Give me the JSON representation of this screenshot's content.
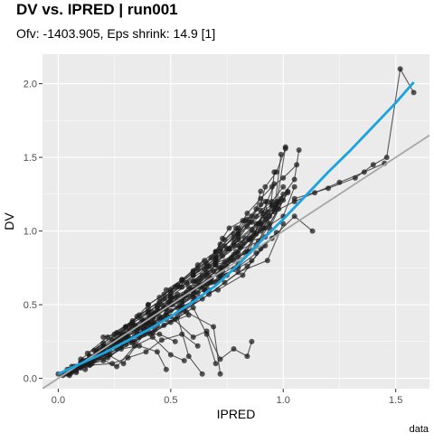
{
  "chart_data": {
    "type": "scatter",
    "title": "DV vs. IPRED | run001",
    "subtitle": "Ofv: -1403.905, Eps shrink: 14.9 [1]",
    "xlabel": "IPRED",
    "ylabel": "DV",
    "caption": "data",
    "xlim": [
      -0.07,
      1.65
    ],
    "ylim": [
      -0.07,
      2.2
    ],
    "x_ticks": [
      0.0,
      0.5,
      1.0,
      1.5
    ],
    "x_tick_labels": [
      "0.0",
      "0.5",
      "1.0",
      "1.5"
    ],
    "y_ticks": [
      0.0,
      0.5,
      1.0,
      1.5,
      2.0
    ],
    "y_tick_labels": [
      "0.0",
      "0.5",
      "1.0",
      "1.5",
      "2.0"
    ],
    "grid": true,
    "background": "#EBEBEB",
    "colors": {
      "points": "#1a1a1a",
      "identity_line": "#A6A6A6",
      "smooth_line": "#1BA3E0"
    },
    "identity_line": {
      "type": "y = x"
    },
    "smooth_line": {
      "x": [
        0.0,
        0.1,
        0.2,
        0.3,
        0.4,
        0.5,
        0.6,
        0.7,
        0.8,
        0.9,
        1.0,
        1.1,
        1.2,
        1.3,
        1.4,
        1.5,
        1.58
      ],
      "y": [
        0.03,
        0.1,
        0.17,
        0.25,
        0.33,
        0.42,
        0.52,
        0.63,
        0.77,
        0.93,
        1.08,
        1.24,
        1.4,
        1.55,
        1.71,
        1.87,
        2.01
      ]
    },
    "individuals": [
      {
        "x": [
          0.0,
          0.05,
          0.1,
          0.15,
          0.2,
          0.3,
          0.4,
          0.5,
          0.6,
          0.72,
          0.85,
          0.92,
          1.0,
          1.05
        ],
        "y": [
          0.03,
          0.05,
          0.1,
          0.13,
          0.2,
          0.28,
          0.38,
          0.5,
          0.6,
          0.75,
          0.95,
          1.02,
          1.1,
          1.3
        ]
      },
      {
        "x": [
          0.02,
          0.08,
          0.13,
          0.2,
          0.28,
          0.36,
          0.45,
          0.55,
          0.65,
          0.75,
          0.88,
          0.95,
          1.05,
          1.13
        ],
        "y": [
          0.02,
          0.08,
          0.12,
          0.17,
          0.25,
          0.34,
          0.42,
          0.5,
          0.63,
          0.7,
          0.85,
          0.95,
          1.1,
          1.0
        ]
      },
      {
        "x": [
          0.03,
          0.1,
          0.18,
          0.26,
          0.34,
          0.42,
          0.52,
          0.6,
          0.7,
          0.8,
          0.9,
          0.98,
          1.05,
          1.07
        ],
        "y": [
          0.03,
          0.11,
          0.17,
          0.27,
          0.36,
          0.43,
          0.55,
          0.6,
          0.78,
          0.85,
          1.05,
          1.2,
          1.35,
          1.55
        ]
      },
      {
        "x": [
          0.04,
          0.12,
          0.2,
          0.3,
          0.4,
          0.48,
          0.58,
          0.68,
          0.78,
          0.88,
          0.98,
          1.02
        ],
        "y": [
          0.03,
          0.12,
          0.2,
          0.3,
          0.38,
          0.47,
          0.56,
          0.68,
          0.8,
          0.9,
          1.15,
          1.27
        ]
      },
      {
        "x": [
          0.05,
          0.14,
          0.22,
          0.32,
          0.42,
          0.5,
          0.62,
          0.73,
          0.84,
          0.93
        ],
        "y": [
          0.06,
          0.15,
          0.19,
          0.33,
          0.41,
          0.52,
          0.58,
          0.75,
          0.86,
          1.2
        ]
      },
      {
        "x": [
          0.06,
          0.16,
          0.25,
          0.35,
          0.44,
          0.55,
          0.66,
          0.76,
          0.86,
          0.94,
          0.96
        ],
        "y": [
          0.05,
          0.14,
          0.25,
          0.35,
          0.46,
          0.53,
          0.7,
          0.8,
          0.96,
          1.1,
          1.4
        ]
      },
      {
        "x": [
          0.07,
          0.17,
          0.27,
          0.37,
          0.47,
          0.57,
          0.67,
          0.77,
          0.87,
          0.96,
          0.99
        ],
        "y": [
          0.08,
          0.18,
          0.24,
          0.4,
          0.48,
          0.58,
          0.66,
          0.82,
          0.99,
          1.13,
          1.52
        ]
      },
      {
        "x": [
          0.08,
          0.19,
          0.29,
          0.39,
          0.49,
          0.59,
          0.69,
          0.79,
          0.89,
          0.97,
          1.01
        ],
        "y": [
          0.07,
          0.17,
          0.31,
          0.37,
          0.52,
          0.6,
          0.73,
          0.86,
          0.93,
          1.18,
          1.57
        ]
      },
      {
        "x": [
          0.1,
          0.2,
          0.31,
          0.41,
          0.51,
          0.61,
          0.71,
          0.81,
          0.91,
          0.99
        ],
        "y": [
          0.09,
          0.22,
          0.28,
          0.42,
          0.5,
          0.66,
          0.7,
          0.89,
          1.02,
          1.22
        ]
      },
      {
        "x": [
          0.11,
          0.23,
          0.33,
          0.43,
          0.53,
          0.63,
          0.74,
          0.83,
          0.92,
          1.0
        ],
        "y": [
          0.12,
          0.2,
          0.36,
          0.44,
          0.57,
          0.63,
          0.79,
          0.85,
          1.08,
          1.25
        ]
      },
      {
        "x": [
          0.12,
          0.24,
          0.35,
          0.46,
          0.56,
          0.66,
          0.75,
          0.85,
          0.94,
          1.02
        ],
        "y": [
          0.1,
          0.26,
          0.32,
          0.5,
          0.55,
          0.72,
          0.76,
          0.94,
          1.05,
          1.26
        ]
      },
      {
        "x": [
          0.14,
          0.26,
          0.38,
          0.48,
          0.58,
          0.68,
          0.78,
          0.88,
          0.97
        ],
        "y": [
          0.15,
          0.24,
          0.39,
          0.47,
          0.62,
          0.67,
          0.84,
          0.98,
          1.16
        ]
      },
      {
        "x": [
          0.15,
          0.28,
          0.4,
          0.5,
          0.6,
          0.7,
          0.8,
          0.9,
          0.98
        ],
        "y": [
          0.13,
          0.3,
          0.35,
          0.55,
          0.59,
          0.77,
          0.82,
          1.0,
          1.19
        ]
      },
      {
        "x": [
          0.17,
          0.3,
          0.42,
          0.53,
          0.63,
          0.73,
          0.82,
          0.92,
          1.0
        ],
        "y": [
          0.18,
          0.27,
          0.45,
          0.52,
          0.68,
          0.73,
          0.92,
          0.96,
          1.21
        ]
      },
      {
        "x": [
          0.06,
          0.15,
          0.24,
          0.34,
          0.45,
          0.56,
          0.67,
          0.8,
          0.93,
          1.0
        ],
        "y": [
          0.08,
          0.1,
          0.22,
          0.29,
          0.4,
          0.46,
          0.57,
          0.72,
          0.8,
          1.05
        ]
      },
      {
        "x": [
          0.08,
          0.18,
          0.28,
          0.38,
          0.48,
          0.6,
          0.71,
          0.82,
          0.9,
          0.97
        ],
        "y": [
          0.04,
          0.2,
          0.27,
          0.34,
          0.44,
          0.55,
          0.6,
          0.7,
          0.88,
          0.99
        ]
      },
      {
        "x": [
          0.05,
          0.13,
          0.22,
          0.32,
          0.43,
          0.54,
          0.64,
          0.74,
          0.84,
          0.92
        ],
        "y": [
          0.02,
          0.11,
          0.14,
          0.26,
          0.37,
          0.45,
          0.54,
          0.65,
          0.76,
          0.9
        ]
      },
      {
        "x": [
          0.1,
          0.2,
          0.3,
          0.4,
          0.5,
          0.6,
          0.7,
          0.8,
          0.9
        ],
        "y": [
          0.13,
          0.24,
          0.34,
          0.45,
          0.56,
          0.66,
          0.79,
          0.9,
          1.06
        ]
      },
      {
        "x": [
          0.13,
          0.22,
          0.33,
          0.44,
          0.54,
          0.64,
          0.73,
          0.83,
          0.93
        ],
        "y": [
          0.17,
          0.28,
          0.39,
          0.49,
          0.62,
          0.7,
          0.83,
          0.95,
          1.13
        ]
      },
      {
        "x": [
          0.16,
          0.26,
          0.36,
          0.47,
          0.57,
          0.67,
          0.76,
          0.86,
          0.95
        ],
        "y": [
          0.19,
          0.31,
          0.43,
          0.54,
          0.65,
          0.76,
          0.88,
          1.01,
          1.17
        ]
      },
      {
        "x": [
          0.2,
          0.3,
          0.4,
          0.5,
          0.6,
          0.7,
          0.8,
          0.88,
          0.97
        ],
        "y": [
          0.22,
          0.35,
          0.47,
          0.58,
          0.7,
          0.81,
          0.94,
          1.05,
          1.2
        ]
      },
      {
        "x": [
          0.04,
          0.1,
          0.2,
          0.3,
          0.41,
          0.52,
          0.6,
          0.66,
          0.7
        ],
        "y": [
          0.06,
          0.07,
          0.15,
          0.23,
          0.3,
          0.4,
          0.48,
          0.3,
          0.1
        ]
      },
      {
        "x": [
          0.06,
          0.14,
          0.23,
          0.33,
          0.43,
          0.53,
          0.58,
          0.64
        ],
        "y": [
          0.04,
          0.09,
          0.16,
          0.24,
          0.33,
          0.42,
          0.15,
          0.03
        ]
      },
      {
        "x": [
          0.08,
          0.16,
          0.26,
          0.36,
          0.47,
          0.57,
          0.69,
          0.72
        ],
        "y": [
          0.05,
          0.12,
          0.2,
          0.28,
          0.36,
          0.45,
          0.35,
          0.03
        ]
      },
      {
        "x": [
          0.05,
          0.12,
          0.2,
          0.28,
          0.36,
          0.44,
          0.48
        ],
        "y": [
          0.03,
          0.09,
          0.12,
          0.2,
          0.22,
          0.18,
          0.06
        ]
      },
      {
        "x": [
          0.1,
          0.18,
          0.26,
          0.34,
          0.42,
          0.5,
          0.56
        ],
        "y": [
          0.08,
          0.14,
          0.08,
          0.22,
          0.28,
          0.16,
          0.12
        ]
      },
      {
        "x": [
          0.12,
          0.2,
          0.29,
          0.38,
          0.45,
          0.52
        ],
        "y": [
          0.06,
          0.18,
          0.1,
          0.3,
          0.3,
          0.25
        ]
      },
      {
        "x": [
          0.14,
          0.24,
          0.31,
          0.39,
          0.46,
          0.55,
          0.62
        ],
        "y": [
          0.09,
          0.1,
          0.14,
          0.18,
          0.26,
          0.3,
          0.22
        ]
      },
      {
        "x": [
          0.5,
          0.6,
          0.66,
          0.72,
          0.78,
          0.84,
          0.86
        ],
        "y": [
          0.42,
          0.28,
          0.32,
          0.13,
          0.2,
          0.15,
          0.25
        ]
      },
      {
        "x": [
          0.4,
          0.5,
          0.6,
          0.7,
          0.8,
          0.88,
          0.95
        ],
        "y": [
          0.5,
          0.6,
          0.72,
          0.83,
          1.0,
          1.1,
          1.18
        ]
      },
      {
        "x": [
          0.55,
          0.6,
          0.66,
          0.7,
          0.73,
          0.76,
          0.82
        ],
        "y": [
          0.62,
          0.7,
          0.78,
          0.86,
          0.95,
          1.02,
          1.07
        ]
      },
      {
        "x": [
          0.6,
          0.66,
          0.72,
          0.78,
          0.84,
          0.91,
          0.96
        ],
        "y": [
          0.7,
          0.76,
          0.86,
          0.9,
          1.03,
          1.12,
          1.15
        ]
      },
      {
        "x": [
          0.65,
          0.7,
          0.74,
          0.8,
          0.86,
          0.92,
          0.94
        ],
        "y": [
          0.74,
          0.8,
          0.9,
          0.98,
          1.1,
          1.2,
          1.02
        ]
      },
      {
        "x": [
          0.7,
          0.75,
          0.8,
          0.85,
          0.88,
          0.9
        ],
        "y": [
          0.82,
          0.88,
          0.96,
          1.06,
          1.15,
          1.27
        ]
      },
      {
        "x": [
          0.3,
          0.4,
          0.52,
          0.62,
          0.7,
          0.76
        ],
        "y": [
          0.35,
          0.44,
          0.62,
          0.66,
          0.77,
          0.88
        ]
      },
      {
        "x": [
          0.35,
          0.45,
          0.55,
          0.62,
          0.7,
          0.78
        ],
        "y": [
          0.42,
          0.52,
          0.66,
          0.77,
          0.86,
          0.98
        ]
      },
      {
        "x": [
          0.45,
          0.53,
          0.62,
          0.72,
          0.78,
          0.83
        ],
        "y": [
          0.55,
          0.63,
          0.74,
          0.88,
          0.95,
          1.07
        ]
      },
      {
        "x": [
          0.25,
          0.33,
          0.4,
          0.47,
          0.55,
          0.65
        ],
        "y": [
          0.3,
          0.38,
          0.5,
          0.57,
          0.67,
          0.8
        ]
      },
      {
        "x": [
          0.48,
          0.55,
          0.6,
          0.68,
          0.72,
          0.79
        ],
        "y": [
          0.6,
          0.67,
          0.73,
          0.82,
          0.91,
          1.02
        ]
      },
      {
        "x": [
          0.65,
          0.72,
          0.8,
          0.85,
          0.89,
          0.96
        ],
        "y": [
          0.6,
          0.7,
          0.78,
          0.86,
          1.05,
          1.32
        ]
      },
      {
        "x": [
          0.74,
          0.8,
          0.84,
          0.9,
          0.95,
          1.0,
          1.06
        ],
        "y": [
          0.94,
          1.02,
          1.12,
          1.22,
          1.3,
          1.36,
          1.45
        ]
      },
      {
        "x": [
          0.78,
          0.84,
          0.9,
          0.92,
          0.97,
          1.01
        ],
        "y": [
          0.92,
          1.08,
          1.18,
          1.3,
          1.4,
          1.56
        ]
      },
      {
        "x": [
          0.55,
          0.65,
          0.68,
          0.73,
          0.8,
          0.86
        ],
        "y": [
          0.52,
          0.6,
          0.65,
          0.7,
          0.75,
          0.8
        ]
      },
      {
        "x": [
          0.8,
          0.86,
          0.9,
          0.95,
          1.0
        ],
        "y": [
          0.98,
          1.06,
          1.14,
          1.2,
          1.3
        ]
      },
      {
        "x": [
          0.2,
          0.27,
          0.32,
          0.38,
          0.43
        ],
        "y": [
          0.28,
          0.3,
          0.36,
          0.38,
          0.44
        ]
      },
      {
        "x": [
          0.22,
          0.28,
          0.34,
          0.4
        ],
        "y": [
          0.16,
          0.22,
          0.25,
          0.32
        ]
      },
      {
        "x": [
          0.28,
          0.35,
          0.42,
          0.5,
          0.58
        ],
        "y": [
          0.24,
          0.3,
          0.31,
          0.38,
          0.43
        ]
      },
      {
        "x": [
          0.32,
          0.38,
          0.44,
          0.5
        ],
        "y": [
          0.27,
          0.33,
          0.36,
          0.46
        ]
      },
      {
        "x": [
          0.36,
          0.42,
          0.48,
          0.55,
          0.61
        ],
        "y": [
          0.3,
          0.36,
          0.4,
          0.48,
          0.54
        ]
      },
      {
        "x": [
          0.38,
          0.46,
          0.53,
          0.6,
          0.67
        ],
        "y": [
          0.36,
          0.41,
          0.48,
          0.52,
          0.6
        ]
      },
      {
        "x": [
          0.42,
          0.48,
          0.54,
          0.6,
          0.66,
          0.72
        ],
        "y": [
          0.38,
          0.43,
          0.49,
          0.57,
          0.64,
          0.67
        ]
      },
      {
        "x": [
          0.44,
          0.5,
          0.56,
          0.63,
          0.7,
          0.78
        ],
        "y": [
          0.48,
          0.54,
          0.56,
          0.62,
          0.65,
          0.74
        ]
      },
      {
        "x": [
          0.92,
          1.05,
          1.14,
          1.25,
          1.36,
          1.45
        ],
        "y": [
          1.1,
          1.2,
          1.26,
          1.33,
          1.4,
          1.46
        ]
      },
      {
        "x": [
          1.05,
          1.2,
          1.32,
          1.4,
          1.46,
          1.52,
          1.58
        ],
        "y": [
          1.22,
          1.29,
          1.36,
          1.45,
          1.5,
          2.1,
          1.94
        ]
      }
    ]
  }
}
